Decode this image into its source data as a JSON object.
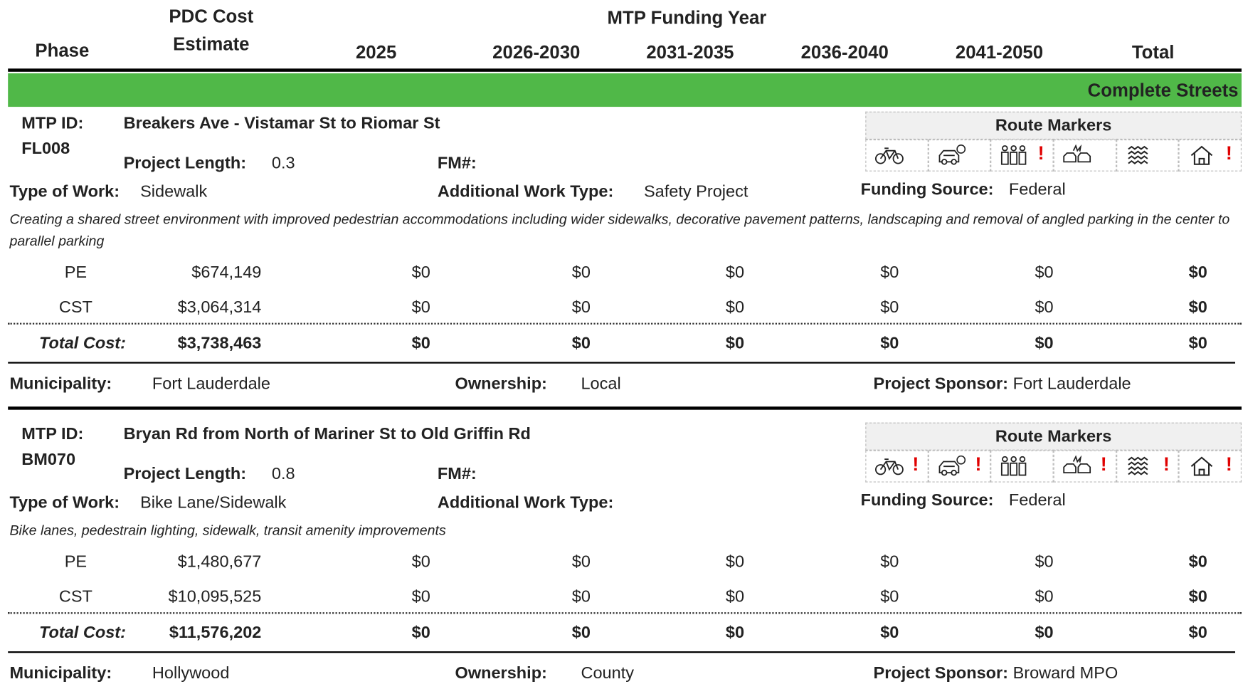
{
  "header": {
    "phase": "Phase",
    "cost_estimate": [
      "PDC Cost",
      "Estimate"
    ],
    "funding_year": "MTP Funding Year",
    "years": [
      "2025",
      "2026-2030",
      "2031-2035",
      "2036-2040",
      "2041-2050"
    ],
    "total": "Total"
  },
  "section": "Complete Streets",
  "labels": {
    "mtp_id": "MTP ID:",
    "project_length": "Project Length:",
    "fm": "FM#:",
    "type_of_work": "Type of Work:",
    "additional_work_type": "Additional Work Type:",
    "funding_source": "Funding Source:",
    "route_markers": "Route Markers",
    "alert": "!",
    "total_cost": "Total Cost:",
    "municipality": "Municipality:",
    "ownership": "Ownership:",
    "project_sponsor": "Project Sponsor:"
  },
  "projects": [
    {
      "id": "FL008",
      "name": "Breakers Ave - Vistamar St to Riomar St",
      "project_length": "0.3",
      "type_of_work": "Sidewalk",
      "additional_work_type": "Safety Project",
      "funding_source": "Federal",
      "alerts": [
        false,
        false,
        true,
        false,
        false,
        true
      ],
      "description": "Creating a shared street environment with improved pedestrian accommodations including wider sidewalks, decorative pavement patterns, landscaping and removal of angled parking in the center to parallel parking",
      "phases": [
        {
          "phase": "PE",
          "cost": "$674,149",
          "years": [
            "$0",
            "$0",
            "$0",
            "$0",
            "$0"
          ],
          "total": "$0"
        },
        {
          "phase": "CST",
          "cost": "$3,064,314",
          "years": [
            "$0",
            "$0",
            "$0",
            "$0",
            "$0"
          ],
          "total": "$0"
        }
      ],
      "total_cost": {
        "cost": "$3,738,463",
        "years": [
          "$0",
          "$0",
          "$0",
          "$0",
          "$0"
        ],
        "total": "$0"
      },
      "municipality": "Fort Lauderdale",
      "ownership": "Local",
      "project_sponsor": "Fort Lauderdale"
    },
    {
      "id": "BM070",
      "name": "Bryan Rd from North of Mariner St to Old Griffin Rd",
      "project_length": "0.8",
      "type_of_work": "Bike Lane/Sidewalk",
      "funding_source": "Federal",
      "alerts": [
        true,
        true,
        false,
        true,
        true,
        true
      ],
      "description": "Bike lanes, pedestrain lighting, sidewalk, transit amenity improvements",
      "phases": [
        {
          "phase": "PE",
          "cost": "$1,480,677",
          "years": [
            "$0",
            "$0",
            "$0",
            "$0",
            "$0"
          ],
          "total": "$0"
        },
        {
          "phase": "CST",
          "cost": "$10,095,525",
          "years": [
            "$0",
            "$0",
            "$0",
            "$0",
            "$0"
          ],
          "total": "$0"
        }
      ],
      "total_cost": {
        "cost": "$11,576,202",
        "years": [
          "$0",
          "$0",
          "$0",
          "$0",
          "$0"
        ],
        "total": "$0"
      },
      "municipality": "Hollywood",
      "ownership": "County",
      "project_sponsor": "Broward MPO"
    }
  ]
}
